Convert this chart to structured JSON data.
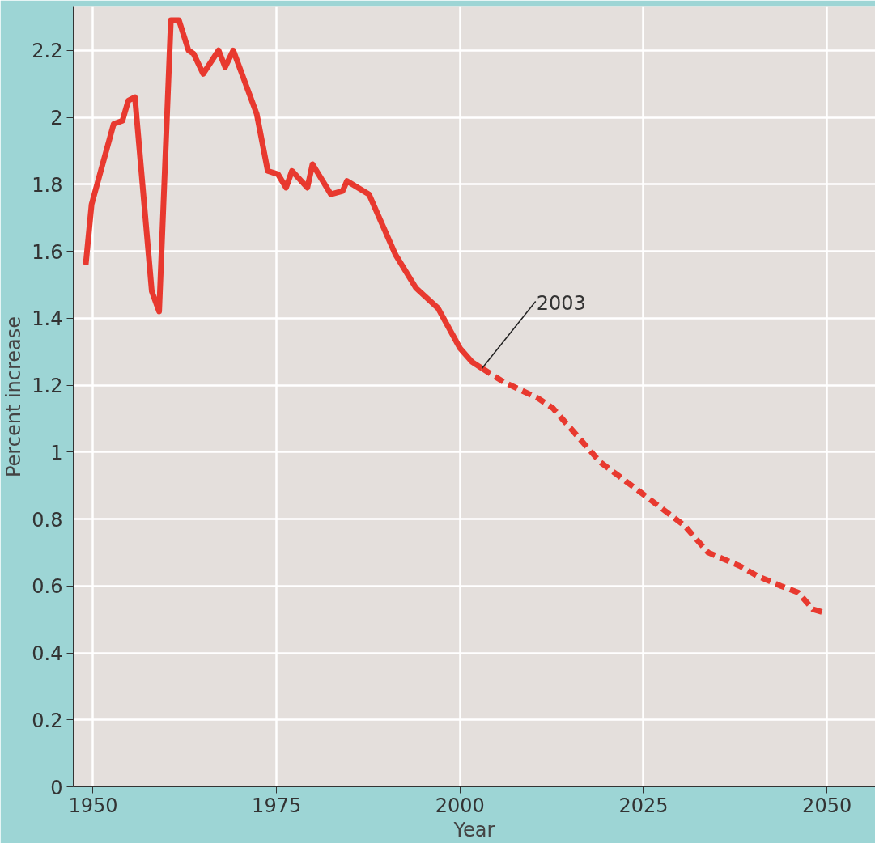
{
  "chart_data": {
    "type": "line",
    "xlabel": "Year",
    "ylabel": "Percent increase",
    "xlim": [
      1947.3,
      2056.6
    ],
    "ylim": [
      0,
      2.33
    ],
    "xticks": [
      1950,
      1975,
      2000,
      2025,
      2050
    ],
    "yticks": [
      0,
      0.2,
      0.4,
      0.6,
      0.8,
      1,
      1.2,
      1.4,
      1.6,
      1.8,
      2,
      2.2
    ],
    "grid": true,
    "marker": "none",
    "annotations": [
      {
        "text": "2003",
        "x": 2003,
        "y": 1.25
      }
    ],
    "series": [
      {
        "color": "#e8392f",
        "line_style": "solid",
        "x": [
          1949,
          1949.8,
          1952.8,
          1954,
          1954.8,
          1955.7,
          1958,
          1959,
          1960.6,
          1961.7,
          1963,
          1963.7,
          1965,
          1967.1,
          1968,
          1969.1,
          1972.3,
          1973.8,
          1975.2,
          1976.3,
          1977.1,
          1979.2,
          1979.9,
          1982.4,
          1984,
          1984.6,
          1987.6,
          1991.2,
          1994,
          1997,
          2000,
          2001.6,
          2003
        ],
        "values": [
          1.56,
          1.74,
          1.98,
          1.99,
          2.05,
          2.06,
          1.48,
          1.42,
          2.29,
          2.29,
          2.2,
          2.19,
          2.13,
          2.2,
          2.15,
          2.2,
          2.01,
          1.84,
          1.83,
          1.79,
          1.84,
          1.79,
          1.86,
          1.77,
          1.78,
          1.81,
          1.77,
          1.59,
          1.49,
          1.43,
          1.31,
          1.27,
          1.25
        ]
      },
      {
        "color": "#e8392f",
        "line_style": "dashed",
        "x": [
          2003,
          2005.9,
          2010.7,
          2012.7,
          2019.1,
          2024.6,
          2030.6,
          2033.8,
          2038.1,
          2040.5,
          2043.7,
          2046.1,
          2048.1,
          2049.7
        ],
        "values": [
          1.25,
          1.21,
          1.16,
          1.13,
          0.97,
          0.88,
          0.78,
          0.7,
          0.66,
          0.63,
          0.6,
          0.58,
          0.53,
          0.52
        ]
      }
    ]
  }
}
